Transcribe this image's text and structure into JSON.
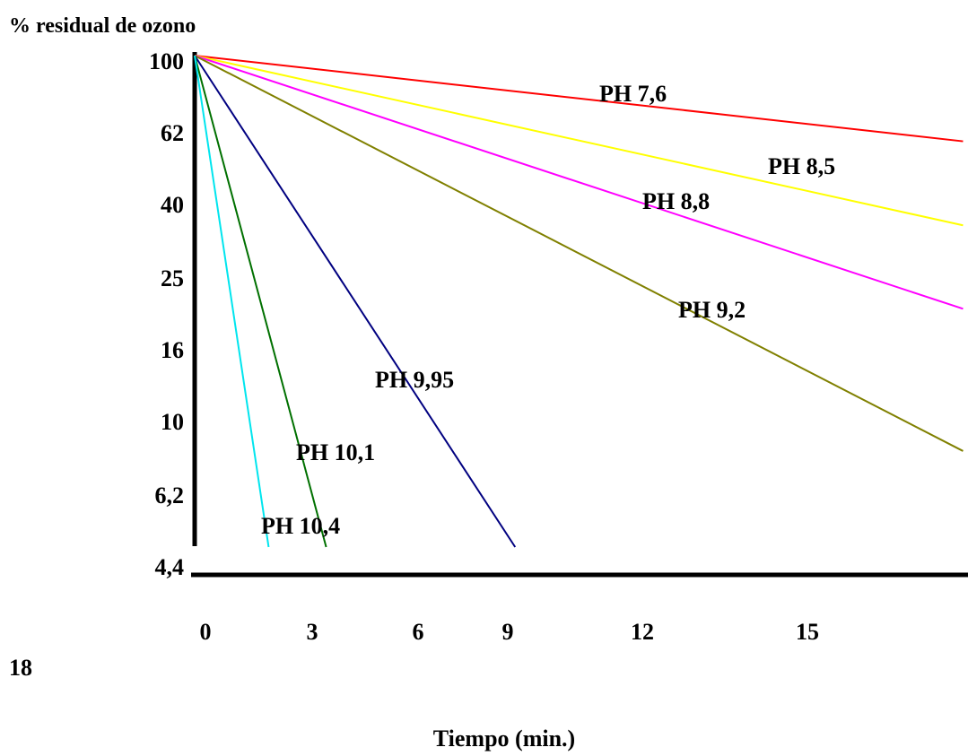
{
  "chart_data": {
    "type": "line",
    "ylabel": "% residual de ozono",
    "xlabel": "Tiempo (min.)",
    "y_scale": "log",
    "y_ticks": [
      "100",
      "62",
      "40",
      "25",
      "16",
      "10",
      "6,2",
      "4,4"
    ],
    "y_tick_values": [
      100,
      62,
      40,
      25,
      16,
      10,
      6.2,
      4.4
    ],
    "x_ticks": [
      "0",
      "3",
      "6",
      "9",
      "12",
      "15"
    ],
    "x_tick_values": [
      0,
      3,
      6,
      9,
      12,
      15
    ],
    "x_extra_tick": "18",
    "xlim": [
      0,
      18
    ],
    "ylim": [
      4.4,
      100
    ],
    "grid": false,
    "series": [
      {
        "name": "PH 7,6",
        "color": "#ff0000",
        "x": [
          0,
          18.7
        ],
        "y": [
          100,
          58
        ]
      },
      {
        "name": "PH 8,5",
        "color": "#ffff00",
        "x": [
          0,
          18.7
        ],
        "y": [
          100,
          34
        ]
      },
      {
        "name": "PH 8,8",
        "color": "#ff00ff",
        "x": [
          0,
          18.7
        ],
        "y": [
          100,
          20
        ]
      },
      {
        "name": "PH 9,2",
        "color": "#808000",
        "x": [
          0,
          18.7
        ],
        "y": [
          100,
          8.1
        ]
      },
      {
        "name": "PH 9,95",
        "color": "#000080",
        "x": [
          0,
          7.8
        ],
        "y": [
          100,
          4.4
        ]
      },
      {
        "name": "PH 10,1",
        "color": "#007000",
        "x": [
          0,
          3.2
        ],
        "y": [
          100,
          4.4
        ]
      },
      {
        "name": "PH 10,4",
        "color": "#00e5ee",
        "x": [
          0,
          1.8
        ],
        "y": [
          100,
          4.4
        ]
      }
    ]
  }
}
